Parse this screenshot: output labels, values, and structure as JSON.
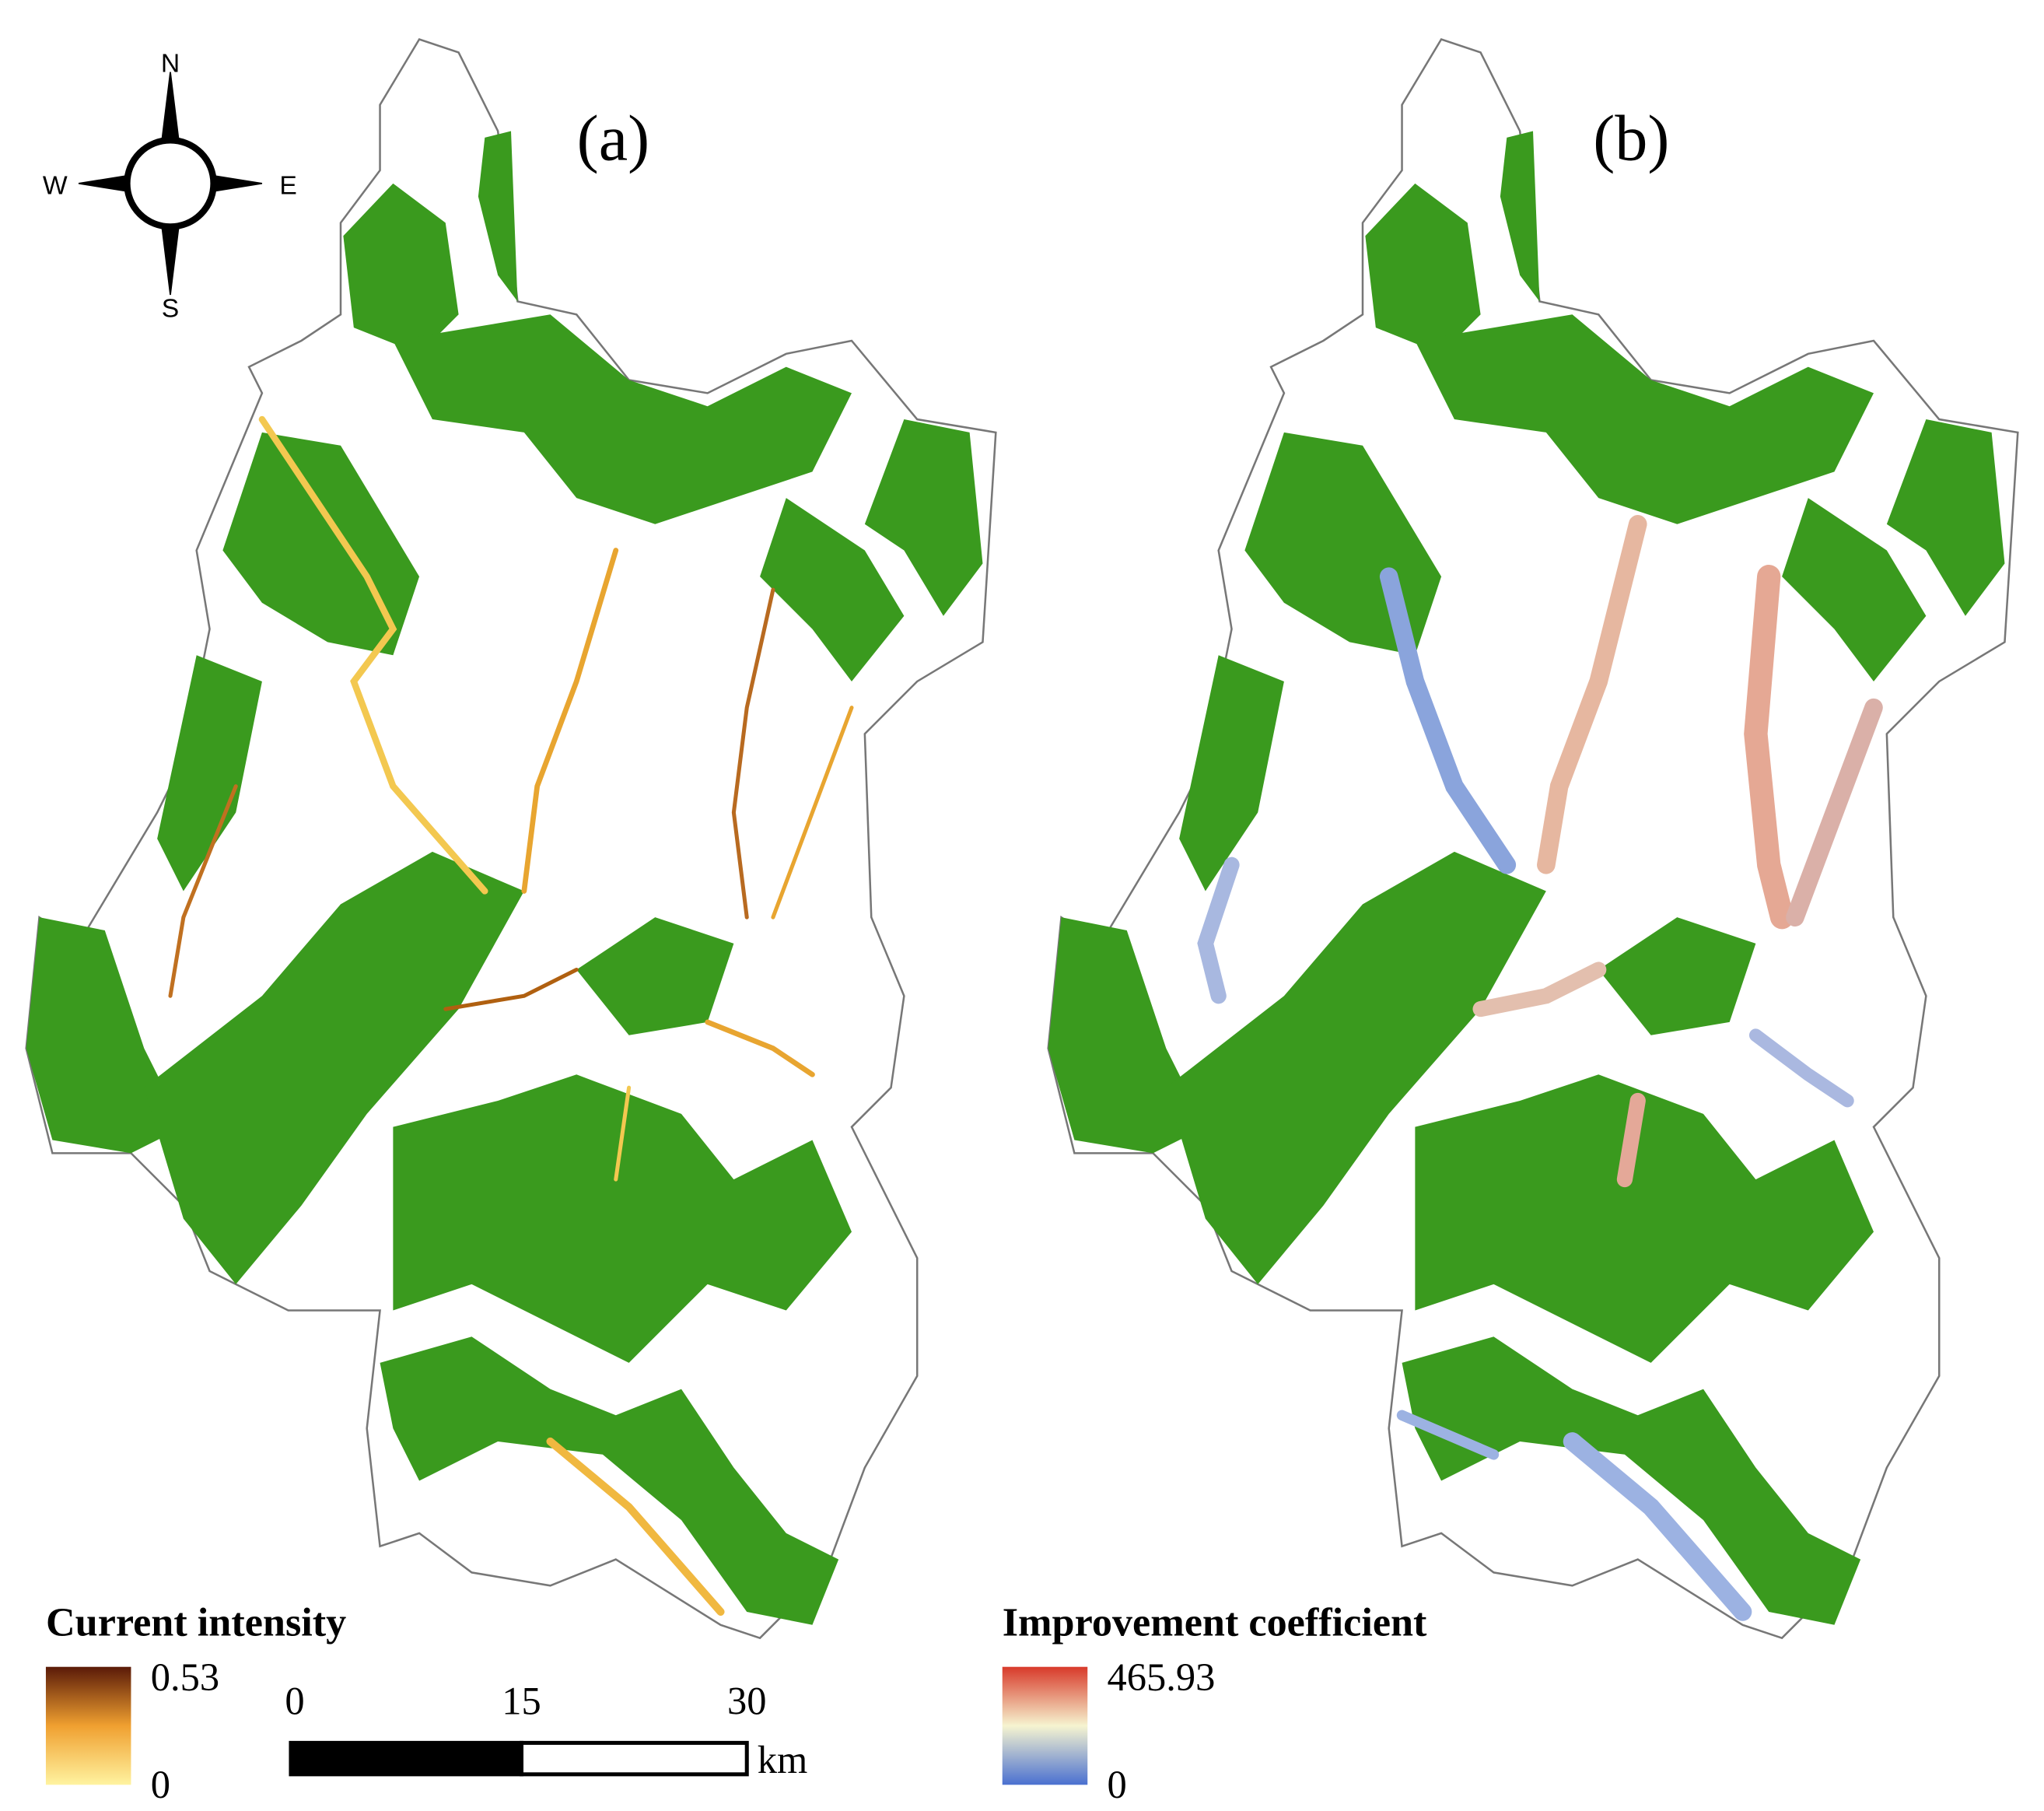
{
  "panels": [
    {
      "label": "(a)",
      "legend": {
        "title": "Current intensity",
        "max": "0.53",
        "min": "0"
      }
    },
    {
      "label": "(b)",
      "legend": {
        "title": "Improvement coefficient",
        "max": "465.93",
        "min": "0"
      }
    }
  ],
  "compass": {
    "north": "N",
    "south": "S",
    "west": "W",
    "east": "E"
  },
  "scale_bar": {
    "ticks": [
      "0",
      "15",
      "30"
    ],
    "unit": "km"
  }
}
